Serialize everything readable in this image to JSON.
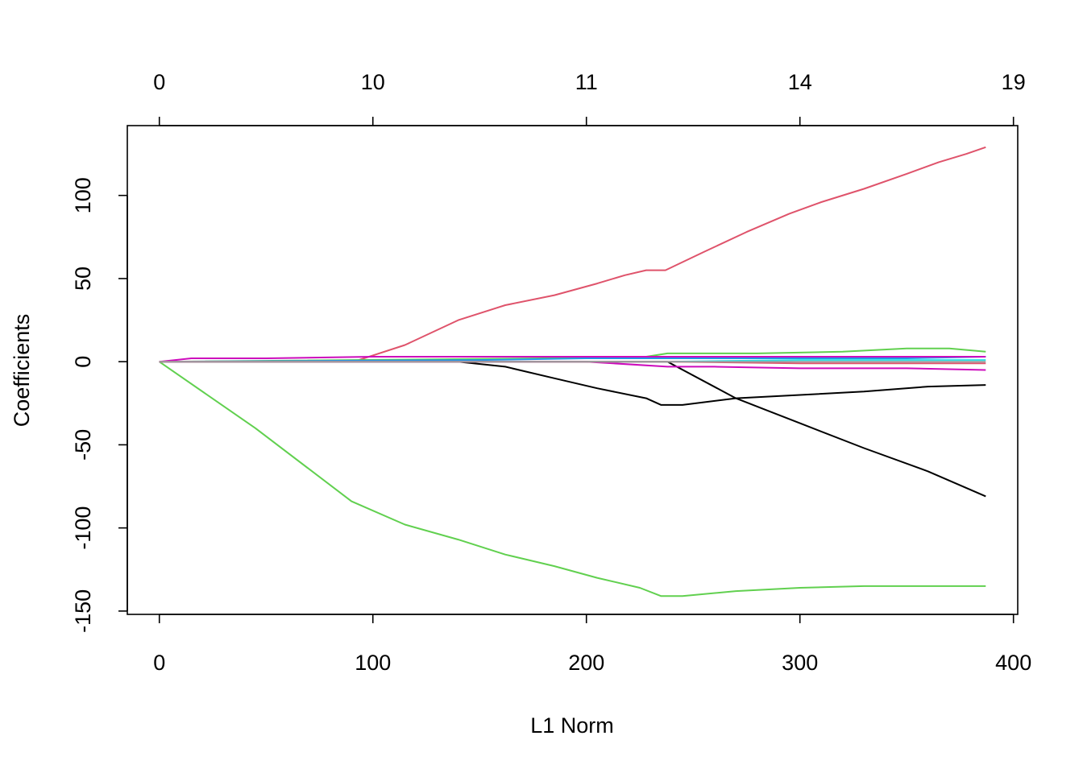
{
  "chart_data": {
    "type": "line",
    "title": "",
    "xlabel": "L1 Norm",
    "ylabel": "Coefficients",
    "xlim": [
      -15,
      402
    ],
    "ylim": [
      -152,
      142
    ],
    "x_ticks": [
      0,
      100,
      200,
      300,
      400
    ],
    "x_tick_labels": [
      "0",
      "100",
      "200",
      "300",
      "400"
    ],
    "y_ticks": [
      -150,
      -100,
      -50,
      0,
      50,
      100
    ],
    "y_tick_labels": [
      "-150",
      "-100",
      "-50",
      "0",
      "50",
      "100"
    ],
    "top_ticks": [
      0,
      100,
      200,
      300,
      400
    ],
    "top_tick_labels": [
      "0",
      "10",
      "11",
      "14",
      "19"
    ],
    "grid": false,
    "legend": "none",
    "series": [
      {
        "color": "#DF536B",
        "x": [
          0,
          91,
          115,
          140,
          162,
          185,
          205,
          218,
          228,
          237,
          255,
          275,
          295,
          310,
          330,
          350,
          365,
          378,
          387
        ],
        "y": [
          0,
          0,
          10,
          25,
          34,
          40,
          47,
          52,
          55,
          55,
          66,
          78,
          89,
          96,
          104,
          113,
          120,
          125,
          129
        ]
      },
      {
        "color": "#61D04F",
        "x": [
          0,
          45,
          90,
          115,
          140,
          162,
          185,
          205,
          225,
          235,
          245,
          270,
          300,
          330,
          360,
          387
        ],
        "y": [
          0,
          -40,
          -84,
          -98,
          -107,
          -116,
          -123,
          -130,
          -136,
          -141,
          -141,
          -138,
          -136,
          -135,
          -135,
          -135
        ]
      },
      {
        "color": "#000000",
        "x": [
          0,
          140,
          162,
          185,
          205,
          228,
          235,
          245,
          270,
          300,
          330,
          360,
          387
        ],
        "y": [
          0,
          0,
          -3,
          -10,
          -16,
          -22,
          -26,
          -26,
          -22,
          -20,
          -18,
          -15,
          -14
        ]
      },
      {
        "color": "#000000",
        "x": [
          0,
          200,
          238,
          270,
          300,
          330,
          360,
          387
        ],
        "y": [
          0,
          0,
          0,
          -22,
          -37,
          -52,
          -66,
          -81
        ]
      },
      {
        "color": "#61D04F",
        "x": [
          0,
          180,
          228,
          238,
          280,
          320,
          350,
          370,
          387
        ],
        "y": [
          0,
          2,
          3,
          5,
          5,
          6,
          8,
          8,
          6
        ]
      },
      {
        "color": "#2297E6",
        "x": [
          0,
          150,
          200,
          238,
          300,
          350,
          387
        ],
        "y": [
          0,
          1,
          2,
          2,
          2,
          2,
          3
        ]
      },
      {
        "color": "#28E2E5",
        "x": [
          0,
          160,
          238,
          300,
          387
        ],
        "y": [
          0,
          0,
          0,
          1,
          1
        ]
      },
      {
        "color": "#CD0BBC",
        "x": [
          0,
          15,
          50,
          100,
          150,
          200,
          238,
          300,
          350,
          387
        ],
        "y": [
          0,
          2,
          2,
          3,
          3,
          3,
          3,
          3,
          3,
          3
        ]
      },
      {
        "color": "#CD0BBC",
        "x": [
          0,
          150,
          200,
          238,
          260,
          300,
          350,
          387
        ],
        "y": [
          0,
          0,
          0,
          -3,
          -3,
          -4,
          -4,
          -5
        ]
      },
      {
        "color": "#DF536B",
        "x": [
          0,
          240,
          300,
          360,
          387
        ],
        "y": [
          0,
          0,
          -1,
          -1,
          -1
        ]
      },
      {
        "color": "#9E9E9E",
        "x": [
          0,
          240,
          300,
          387
        ],
        "y": [
          0,
          0,
          0,
          0
        ]
      }
    ]
  }
}
